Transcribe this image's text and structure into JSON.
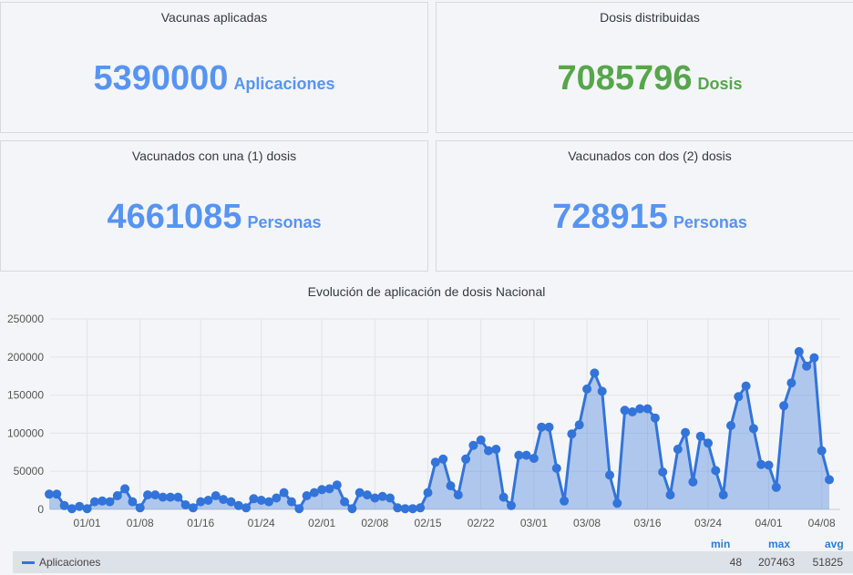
{
  "panels": [
    {
      "title": "Vacunas aplicadas",
      "value": "5390000",
      "unit": "Aplicaciones",
      "color": "#5794f2"
    },
    {
      "title": "Dosis distribuidas",
      "value": "7085796",
      "unit": "Dosis",
      "color": "#56a64b"
    },
    {
      "title": "Vacunados con una (1) dosis",
      "value": "4661085",
      "unit": "Personas",
      "color": "#5794f2"
    },
    {
      "title": "Vacunados con dos (2) dosis",
      "value": "728915",
      "unit": "Personas",
      "color": "#5794f2"
    }
  ],
  "chart_data": {
    "type": "area",
    "title": "Evolución de aplicación de dosis Nacional",
    "ylim": [
      0,
      250000
    ],
    "yticks": [
      "0",
      "50000",
      "100000",
      "150000",
      "200000",
      "250000"
    ],
    "xticks": [
      {
        "label": "01/01",
        "day": 5
      },
      {
        "label": "01/08",
        "day": 12
      },
      {
        "label": "01/16",
        "day": 20
      },
      {
        "label": "01/24",
        "day": 28
      },
      {
        "label": "02/01",
        "day": 36
      },
      {
        "label": "02/08",
        "day": 43
      },
      {
        "label": "02/15",
        "day": 50
      },
      {
        "label": "02/22",
        "day": 57
      },
      {
        "label": "03/01",
        "day": 64
      },
      {
        "label": "03/08",
        "day": 71
      },
      {
        "label": "03/16",
        "day": 79
      },
      {
        "label": "03/24",
        "day": 87
      },
      {
        "label": "04/01",
        "day": 95
      },
      {
        "label": "04/08",
        "day": 102
      }
    ],
    "x_start": "12/28",
    "x_end": "04/11",
    "grid": true,
    "series": [
      {
        "name": "Aplicaciones",
        "color": "#3274d9",
        "values": [
          20000,
          20000,
          5000,
          1000,
          4000,
          1000,
          10000,
          11000,
          10000,
          18000,
          27000,
          10000,
          2000,
          19000,
          19000,
          16000,
          16000,
          16000,
          6000,
          2000,
          10000,
          12000,
          18000,
          13000,
          10000,
          5000,
          2000,
          14000,
          12000,
          10000,
          15000,
          22000,
          10000,
          1000,
          18000,
          22000,
          26000,
          27000,
          32000,
          10000,
          1000,
          22000,
          19000,
          15000,
          17000,
          15000,
          2000,
          1000,
          1000,
          2000,
          22000,
          62000,
          66000,
          31000,
          19000,
          66000,
          84000,
          91000,
          77000,
          79000,
          16000,
          5000,
          71000,
          71000,
          67000,
          108000,
          108000,
          54000,
          11000,
          99000,
          111000,
          158000,
          179000,
          155000,
          45000,
          8000,
          130000,
          128000,
          132000,
          132000,
          120000,
          49000,
          19000,
          79000,
          101000,
          36000,
          96000,
          87000,
          51000,
          19000,
          110000,
          148000,
          162000,
          106000,
          59000,
          58000,
          29000,
          136000,
          166000,
          207000,
          188000,
          199000,
          77000,
          39000
        ]
      }
    ],
    "legend": {
      "min": "48",
      "max": "207463",
      "avg": "51825"
    }
  },
  "legend_headers": {
    "min": "min",
    "max": "max",
    "avg": "avg"
  }
}
